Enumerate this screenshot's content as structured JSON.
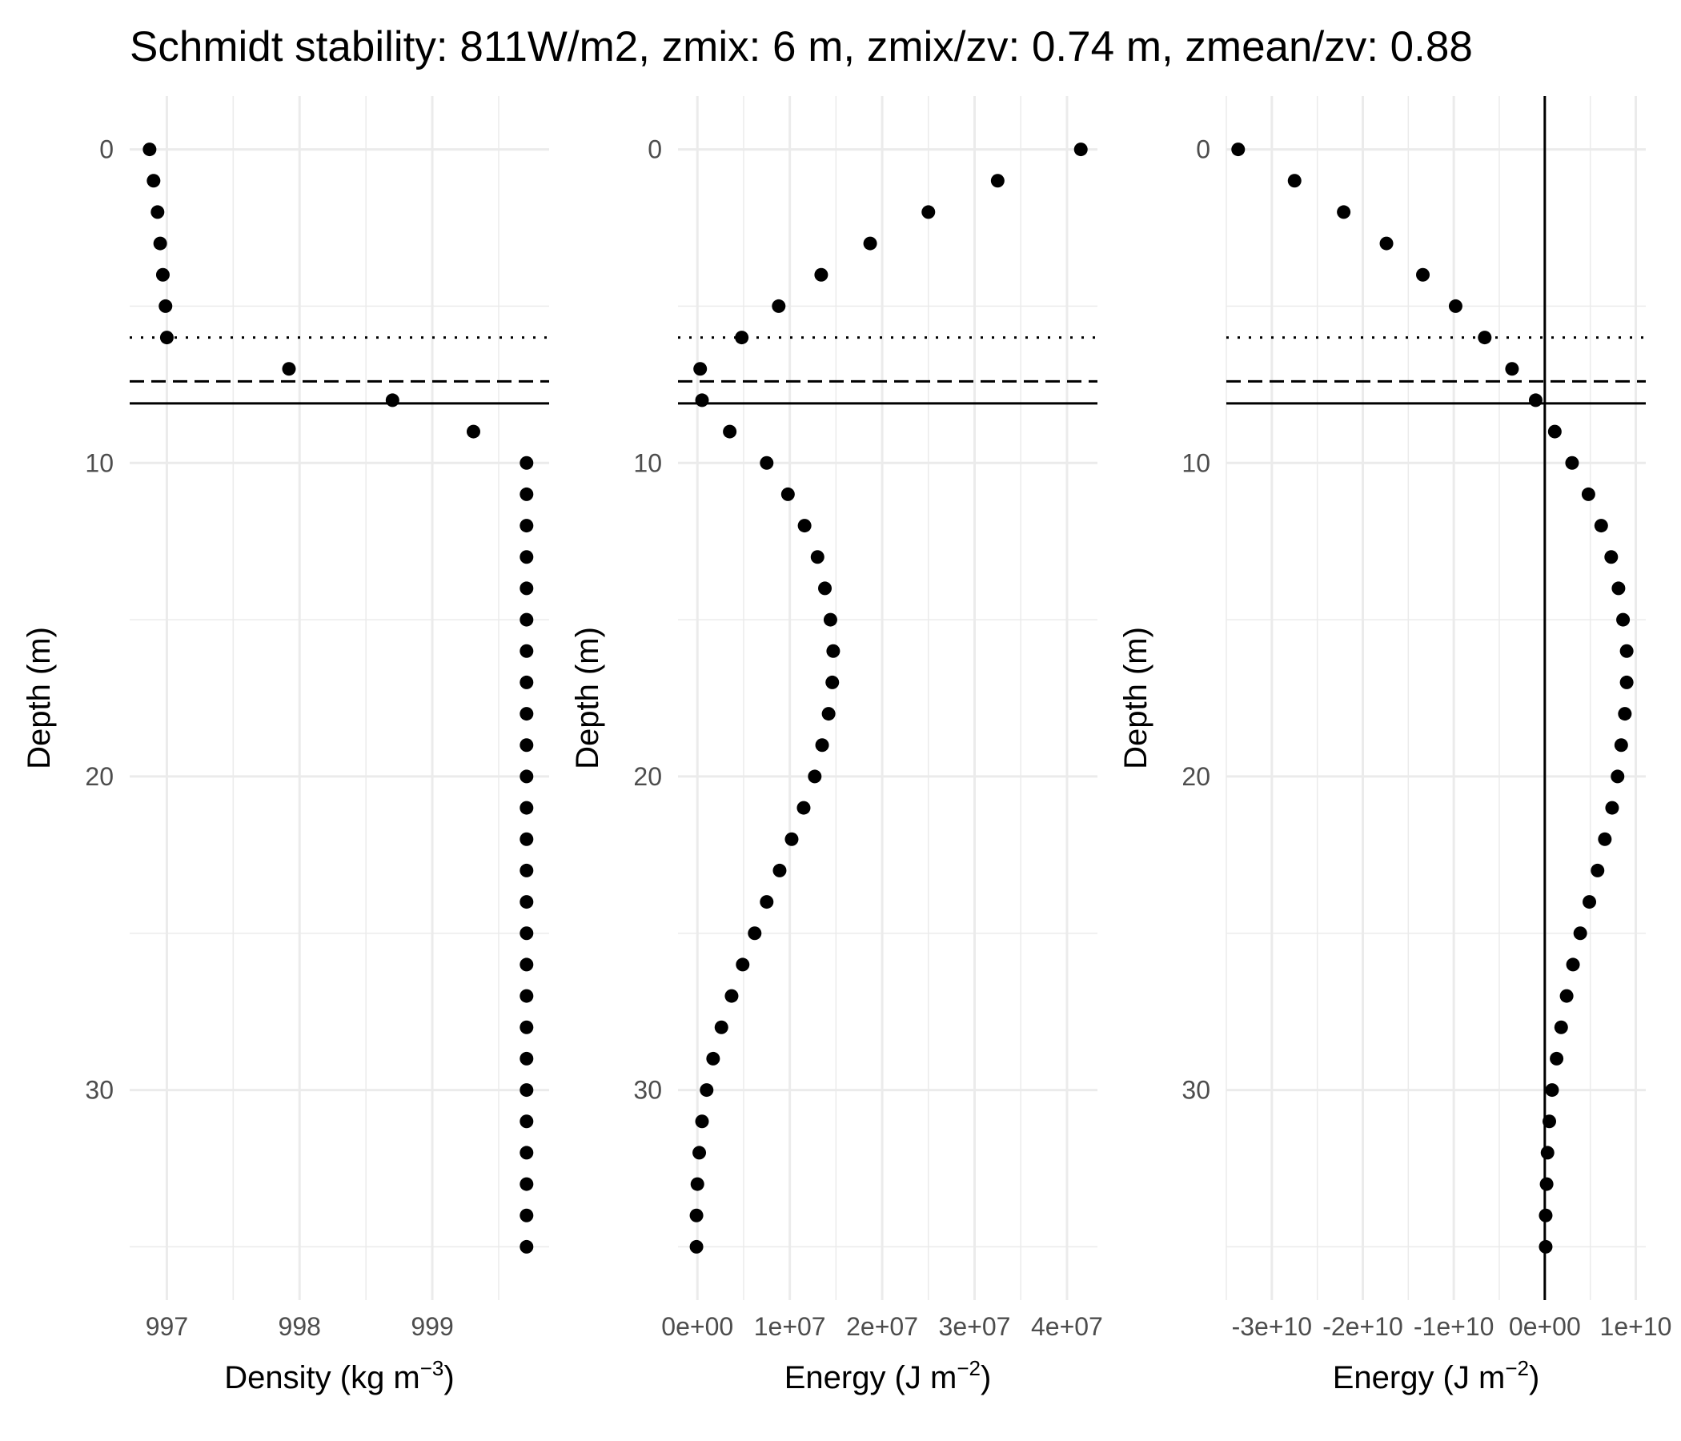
{
  "title": "Schmidt stability: 811W/m2, zmix: 6 m, zmix/zv: 0.74 m, zmean/zv: 0.88",
  "colors": {
    "background": "#ffffff",
    "grid": "#ebebeb",
    "points": "#000000",
    "lines": "#000000",
    "tick_text": "#4d4d4d"
  },
  "chart_data": [
    {
      "type": "scatter",
      "ylabel": "Depth (m)",
      "xlabel_base": "Density (kg m",
      "xlabel_sup": "−3",
      "xlabel_end": ")",
      "xlim": [
        996.72,
        999.88
      ],
      "ylim": [
        36.7,
        -1.7
      ],
      "y_reversed": true,
      "xticks": [
        997,
        998,
        999
      ],
      "xtick_labels": [
        "997",
        "998",
        "999"
      ],
      "yticks": [
        0,
        10,
        20,
        30
      ],
      "ytick_labels": [
        "0",
        "10",
        "20",
        "30"
      ],
      "hlines": [
        {
          "y": 6,
          "style": "dotted"
        },
        {
          "y": 7.4,
          "style": "dashed"
        },
        {
          "y": 8.1,
          "style": "solid"
        }
      ],
      "vlines": [],
      "points": {
        "x": [
          996.87,
          996.9,
          996.93,
          996.95,
          996.97,
          996.99,
          997.0,
          997.92,
          998.7,
          999.31,
          999.71,
          999.71,
          999.71,
          999.71,
          999.71,
          999.71,
          999.71,
          999.71,
          999.71,
          999.71,
          999.71,
          999.71,
          999.71,
          999.71,
          999.71,
          999.71,
          999.71,
          999.71,
          999.71,
          999.71,
          999.71,
          999.71,
          999.71,
          999.71,
          999.71,
          999.71
        ],
        "y": [
          0,
          1,
          2,
          3,
          4,
          5,
          6,
          7,
          8,
          9,
          10,
          11,
          12,
          13,
          14,
          15,
          16,
          17,
          18,
          19,
          20,
          21,
          22,
          23,
          24,
          25,
          26,
          27,
          28,
          29,
          30,
          31,
          32,
          33,
          34,
          35
        ]
      }
    },
    {
      "type": "scatter",
      "ylabel": "Depth (m)",
      "xlabel_base": "Energy (J m",
      "xlabel_sup": "−2",
      "xlabel_end": ")",
      "xlim": [
        -2100000,
        43300000
      ],
      "ylim": [
        36.7,
        -1.7
      ],
      "y_reversed": true,
      "xticks": [
        0,
        10000000,
        20000000,
        30000000,
        40000000
      ],
      "xtick_labels": [
        "0e+00",
        "1e+07",
        "2e+07",
        "3e+07",
        "4e+07"
      ],
      "yticks": [
        0,
        10,
        20,
        30
      ],
      "ytick_labels": [
        "0",
        "10",
        "20",
        "30"
      ],
      "hlines": [
        {
          "y": 6,
          "style": "dotted"
        },
        {
          "y": 7.4,
          "style": "dashed"
        },
        {
          "y": 8.1,
          "style": "solid"
        }
      ],
      "vlines": [],
      "points": {
        "x": [
          41500000,
          32500000,
          25000000,
          18700000,
          13400000,
          8800000,
          4800000,
          300000,
          500000,
          3500000,
          7500000,
          9800000,
          11600000,
          13000000,
          13800000,
          14400000,
          14700000,
          14600000,
          14200000,
          13500000,
          12700000,
          11500000,
          10200000,
          8900000,
          7500000,
          6200000,
          4900000,
          3700000,
          2600000,
          1700000,
          1000000,
          500000,
          200000,
          0,
          -100000,
          -100000
        ],
        "y": [
          0,
          1,
          2,
          3,
          4,
          5,
          6,
          7,
          8,
          9,
          10,
          11,
          12,
          13,
          14,
          15,
          16,
          17,
          18,
          19,
          20,
          21,
          22,
          23,
          24,
          25,
          26,
          27,
          28,
          29,
          30,
          31,
          32,
          33,
          34,
          35
        ]
      }
    },
    {
      "type": "scatter",
      "ylabel": "Depth (m)",
      "xlabel_base": "Energy (J m",
      "xlabel_sup": "−2",
      "xlabel_end": ")",
      "xlim": [
        -35000000000,
        11100000000
      ],
      "ylim": [
        36.7,
        -1.7
      ],
      "y_reversed": true,
      "xticks": [
        -30000000000,
        -20000000000,
        -10000000000,
        0,
        10000000000
      ],
      "xtick_labels": [
        "-3e+10",
        "-2e+10",
        "-1e+10",
        "0e+00",
        "1e+10"
      ],
      "yticks": [
        0,
        10,
        20,
        30
      ],
      "ytick_labels": [
        "0",
        "10",
        "20",
        "30"
      ],
      "hlines": [
        {
          "y": 6,
          "style": "dotted"
        },
        {
          "y": 7.4,
          "style": "dashed"
        },
        {
          "y": 8.1,
          "style": "solid"
        }
      ],
      "vlines": [
        {
          "x": 0,
          "style": "solid"
        }
      ],
      "points": {
        "x": [
          -33700000000,
          -27500000000,
          -22100000000,
          -17400000000,
          -13400000000,
          -9800000000,
          -6600000000,
          -3600000000,
          -1000000000,
          1100000000,
          3000000000,
          4800000000,
          6200000000,
          7300000000,
          8100000000,
          8600000000,
          9000000000,
          9000000000,
          8800000000,
          8400000000,
          8000000000,
          7400000000,
          6600000000,
          5800000000,
          4900000000,
          3900000000,
          3100000000,
          2400000000,
          1800000000,
          1300000000,
          800000000,
          500000000,
          300000000,
          200000000,
          100000000,
          100000000
        ],
        "y": [
          0,
          1,
          2,
          3,
          4,
          5,
          6,
          7,
          8,
          9,
          10,
          11,
          12,
          13,
          14,
          15,
          16,
          17,
          18,
          19,
          20,
          21,
          22,
          23,
          24,
          25,
          26,
          27,
          28,
          29,
          30,
          31,
          32,
          33,
          34,
          35
        ]
      }
    }
  ]
}
